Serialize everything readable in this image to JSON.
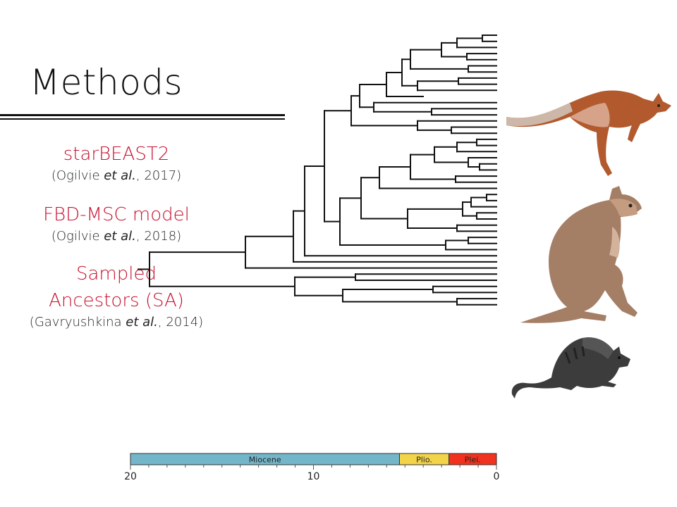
{
  "slide": {
    "title": "Methods",
    "methods": [
      {
        "name_lines": [
          "starBEAST2"
        ],
        "cite_pre": "(Ogilvie ",
        "cite_em": "et al.",
        "cite_post": ", 2017)"
      },
      {
        "name_lines": [
          "FBD-MSC model"
        ],
        "cite_pre": "(Ogilvie ",
        "cite_em": "et al.",
        "cite_post": ", 2018)"
      },
      {
        "name_lines": [
          "Sampled",
          "Ancestors (SA)"
        ],
        "cite_pre": "(Gavryushkina ",
        "cite_em": "et al.",
        "cite_post": ", 2014)"
      }
    ]
  },
  "timescale": {
    "epochs": [
      {
        "label": "Miocene",
        "start": 20,
        "end": 5.3,
        "color": "#74b6c9"
      },
      {
        "label": "Plio.",
        "start": 5.3,
        "end": 2.6,
        "color": "#f3d34a"
      },
      {
        "label": "Plei.",
        "start": 2.6,
        "end": 0,
        "color": "#f0321e"
      }
    ],
    "ticks": [
      "20",
      "10",
      "0"
    ]
  },
  "colors": {
    "accent": "#c8102e",
    "tree": "#111111"
  },
  "illustrations": [
    "kangaroo-icon",
    "wallaroo-icon",
    "rat-kangaroo-icon"
  ]
}
